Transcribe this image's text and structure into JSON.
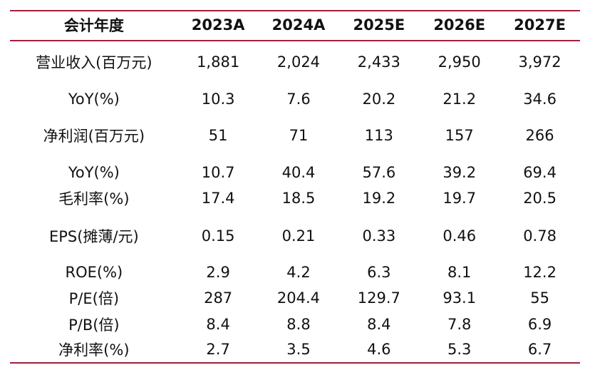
{
  "table": {
    "columns": [
      "会计年度",
      "2023A",
      "2024A",
      "2025E",
      "2026E",
      "2027E"
    ],
    "rows": [
      {
        "label": "营业收入(百万元)",
        "values": [
          "1,881",
          "2,024",
          "2,433",
          "2,950",
          "3,972"
        ]
      },
      {
        "label": "YoY(%)",
        "values": [
          "10.3",
          "7.6",
          "20.2",
          "21.2",
          "34.6"
        ]
      },
      {
        "label": "净利润(百万元)",
        "values": [
          "51",
          "71",
          "113",
          "157",
          "266"
        ]
      },
      {
        "label": "YoY(%)",
        "values": [
          "10.7",
          "40.4",
          "57.6",
          "39.2",
          "69.4"
        ]
      },
      {
        "label": "毛利率(%)",
        "values": [
          "17.4",
          "18.5",
          "19.2",
          "19.7",
          "20.5"
        ]
      },
      {
        "label": "EPS(摊薄/元)",
        "values": [
          "0.15",
          "0.21",
          "0.33",
          "0.46",
          "0.78"
        ]
      },
      {
        "label": "ROE(%)",
        "values": [
          "2.9",
          "4.2",
          "6.3",
          "8.1",
          "12.2"
        ]
      },
      {
        "label": "P/E(倍)",
        "values": [
          "287",
          "204.4",
          "129.7",
          "93.1",
          "55"
        ]
      },
      {
        "label": "P/B(倍)",
        "values": [
          "8.4",
          "8.8",
          "8.4",
          "7.8",
          "6.9"
        ]
      },
      {
        "label": "净利率(%)",
        "values": [
          "2.7",
          "3.5",
          "4.6",
          "5.3",
          "6.7"
        ]
      }
    ]
  },
  "colors": {
    "rule": "#a0203a",
    "text": "#111111",
    "background": "#ffffff"
  }
}
